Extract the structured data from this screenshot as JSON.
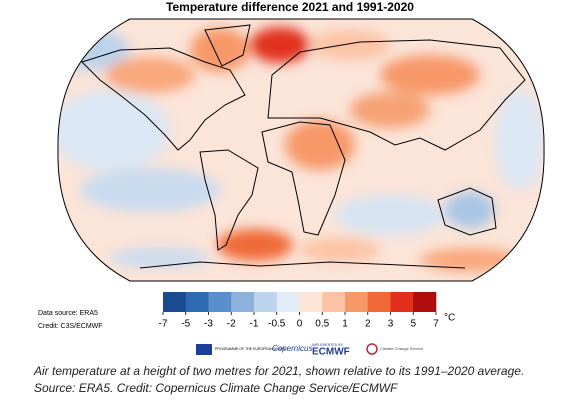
{
  "title": "Temperature difference 2021 and 1991-2020",
  "data_source": "Data source: ERA5",
  "credit": "Credit: C3S/ECMWF",
  "colorbar": {
    "ticks": [
      -7,
      -5,
      -3,
      -2,
      -1,
      -0.5,
      0,
      0.5,
      1,
      2,
      3,
      5,
      7
    ],
    "colors": [
      "#1a4a8f",
      "#2f6bb3",
      "#5a8fcc",
      "#8cb2dc",
      "#bcd3ec",
      "#e2ecf6",
      "#fde6d8",
      "#fbc3a4",
      "#f79869",
      "#f06a37",
      "#e2301c",
      "#ad0d0d"
    ],
    "unit": "°C"
  },
  "logos": {
    "eu": "PROGRAMME OF THE EUROPEAN UNION",
    "copernicus": "Copernicus",
    "implemented": "IMPLEMENTED BY",
    "ecmwf": "ECMWF",
    "c3s": "Climate Change Service"
  },
  "caption": "Air temperature at a height of two metres for 2021, shown relative to its 1991–2020 average. Source: ERA5. Credit: Copernicus Climate Change Service/ECMWF"
}
